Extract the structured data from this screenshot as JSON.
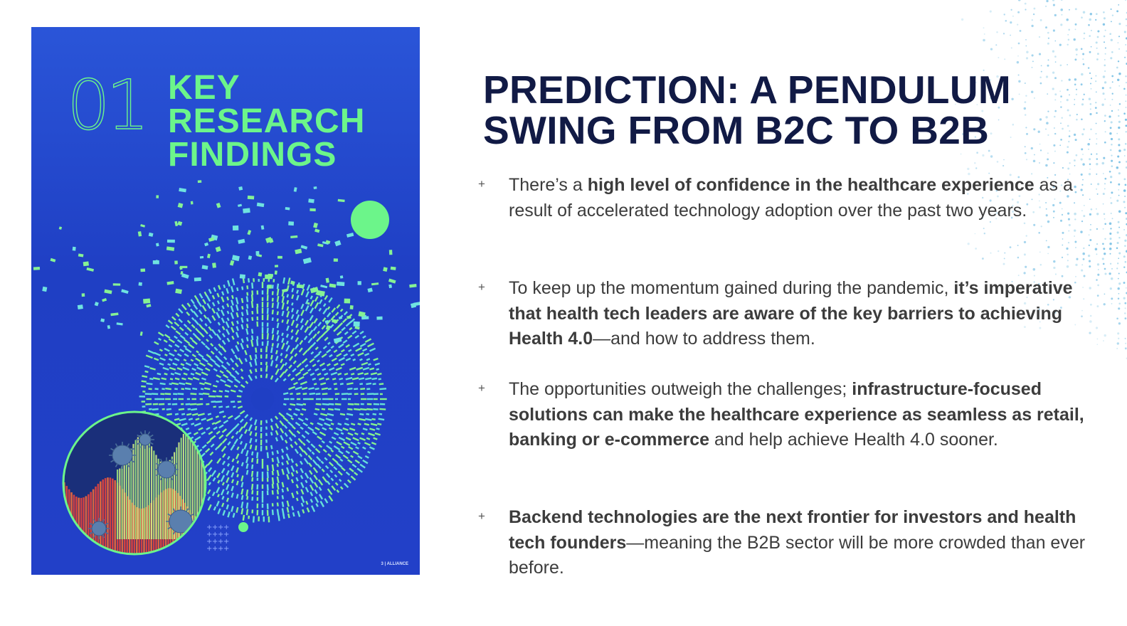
{
  "cover": {
    "number": "01",
    "title_lines": [
      "KEY",
      "RESEARCH",
      "FINDINGS"
    ],
    "footer": "3 | ALLIANCE",
    "colors": {
      "background": "#2246cc",
      "accent": "#6cf58a"
    }
  },
  "slide": {
    "headline_lines": [
      "PREDICTION: A PENDULUM",
      "SWING FROM B2C TO B2B"
    ],
    "bullet_marker": "+",
    "bullets": [
      {
        "parts": [
          {
            "text": "There’s a ",
            "bold": false
          },
          {
            "text": "high level of confidence in the healthcare experience",
            "bold": true
          },
          {
            "text": " as a result of accelerated technology adoption over the past two years.",
            "bold": false
          }
        ]
      },
      {
        "parts": [
          {
            "text": "To keep up the momentum gained during the pandemic, ",
            "bold": false
          },
          {
            "text": "it’s imperative that health tech leaders are aware of the key barriers to achieving Health 4.0",
            "bold": true
          },
          {
            "text": "—and how to address them.",
            "bold": false
          }
        ]
      },
      {
        "parts": [
          {
            "text": "The opportunities outweigh the challenges; ",
            "bold": false
          },
          {
            "text": "infrastructure-focused solutions can make the healthcare experience as seamless as retail, banking or e-commerce",
            "bold": true
          },
          {
            "text": " and help achieve Health 4.0 sooner.",
            "bold": false
          }
        ]
      },
      {
        "parts": [
          {
            "text": "Backend technologies are the next frontier for investors and health tech founders",
            "bold": true
          },
          {
            "text": "—meaning the B2B sector will be more crowded than ever before.",
            "bold": false
          }
        ]
      }
    ],
    "colors": {
      "headline": "#111a45",
      "body": "#3c3c3c"
    }
  }
}
